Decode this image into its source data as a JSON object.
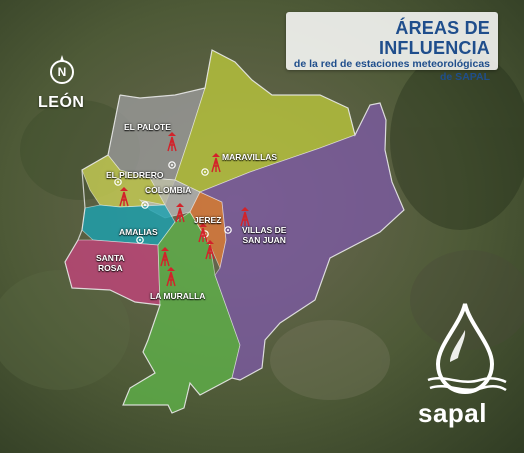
{
  "title": {
    "main": "ÁREAS DE INFLUENCIA",
    "line1": "de la red de estaciones meteorológicas",
    "line2": "de SAPAL"
  },
  "city": "LEÓN",
  "compass": "N",
  "brand": "sapal",
  "colors": {
    "title_text": "#1f4e8c",
    "el_palote": "#9a9a9a",
    "maravillas": "#b9c63c",
    "el_piedrero": "#c9cf55",
    "colombia": "#b8b8b8",
    "amalias": "#1aa3b2",
    "santa_rosa": "#c2447a",
    "la_muralla": "#5fb14a",
    "jerez": "#e07a3a",
    "villas_de_san_juan": "#7c5aa3",
    "station": "#d2232a"
  },
  "zones": {
    "el_palote": "EL PALOTE",
    "maravillas": "MARAVILLAS",
    "el_piedrero": "EL PIEDRERO",
    "colombia": "COLOMBIA",
    "amalias": "AMALIAS",
    "jerez": "JEREZ",
    "villas_de_san_juan": "VILLAS DE\nSAN JUAN",
    "santa_rosa": "SANTA\nROSA",
    "la_muralla": "LA MURALLA"
  }
}
